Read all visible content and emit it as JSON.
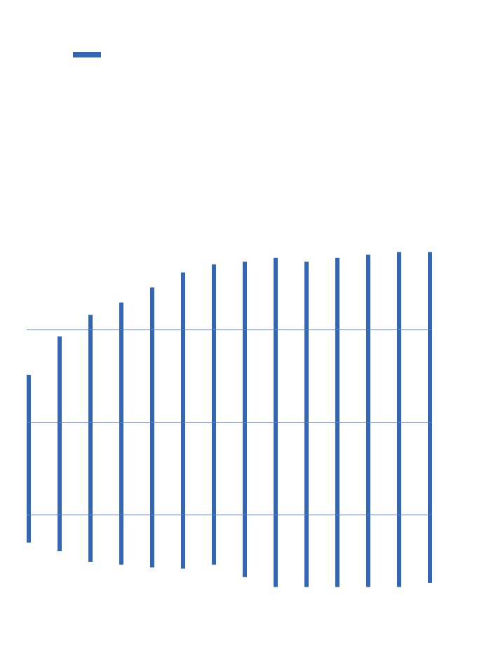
{
  "chart_data": {
    "type": "bar",
    "subtype": "floating-range",
    "orientation": "vertical",
    "title": "",
    "xlabel": "",
    "ylabel": "",
    "ylim": [
      0,
      1
    ],
    "grid": true,
    "legend": {
      "placement": "top-left",
      "entries": [
        {
          "name": "",
          "color": "#3366b3"
        }
      ]
    },
    "series": [
      {
        "name": "",
        "color": "#3366b3",
        "points": [
          {
            "low": 0.117,
            "high": 0.62
          },
          {
            "low": 0.092,
            "high": 0.735
          },
          {
            "low": 0.059,
            "high": 0.8
          },
          {
            "low": 0.051,
            "high": 0.837
          },
          {
            "low": 0.043,
            "high": 0.882
          },
          {
            "low": 0.039,
            "high": 0.927
          },
          {
            "low": 0.051,
            "high": 0.951
          },
          {
            "low": 0.014,
            "high": 0.959
          },
          {
            "low": -0.016,
            "high": 0.971
          },
          {
            "low": -0.016,
            "high": 0.959
          },
          {
            "low": -0.016,
            "high": 0.971
          },
          {
            "low": -0.016,
            "high": 0.98
          },
          {
            "low": -0.016,
            "high": 0.988
          },
          {
            "low": -0.004,
            "high": 0.988
          }
        ]
      }
    ],
    "gridlines": [
      0.2,
      0.478,
      0.755
    ],
    "colors": {
      "series": "#3366b3",
      "grid": "#5b84c6"
    }
  }
}
